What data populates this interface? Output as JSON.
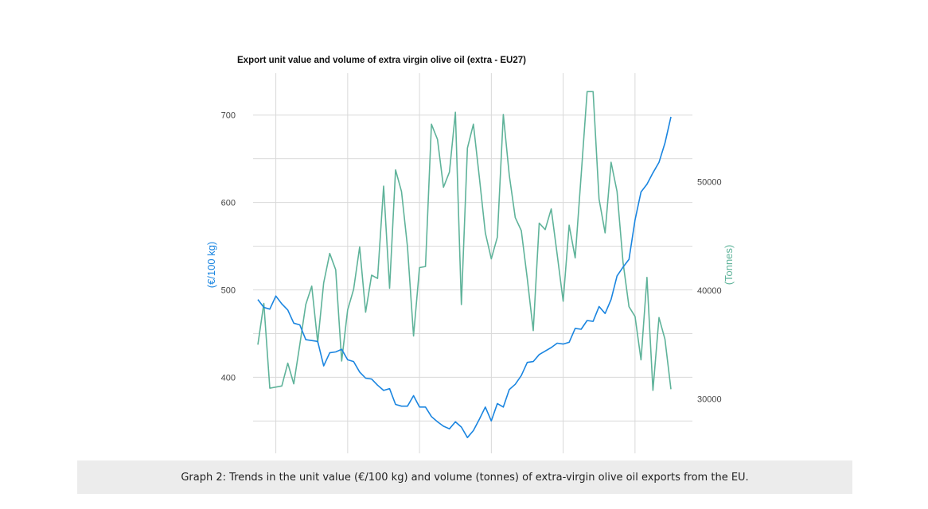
{
  "chart_data": {
    "type": "line",
    "title": "Export unit value and volume of extra virgin olive oil (extra - EU27)",
    "y_left": {
      "label": "(€/100 kg)",
      "ticks": [
        400,
        500,
        600,
        700
      ],
      "range": [
        313,
        748
      ],
      "color": "#1a85e0"
    },
    "y_right": {
      "label": "(Tonnes)",
      "ticks": [
        30000,
        40000,
        50000
      ],
      "range": [
        25000,
        60000
      ],
      "color": "#5fb39a"
    },
    "x": {
      "count": 70,
      "tick_labels": []
    },
    "grid": true,
    "series": [
      {
        "axis": "left",
        "color": "#1a85e0",
        "values": [
          489,
          480,
          478,
          493,
          484,
          477,
          462,
          460,
          443,
          442,
          441,
          413,
          428,
          429,
          432,
          420,
          418,
          406,
          399,
          398,
          391,
          385,
          387,
          369,
          367,
          367,
          379,
          366,
          366,
          355,
          349,
          344,
          341,
          349,
          343,
          331,
          339,
          352,
          366,
          350,
          370,
          366,
          386,
          392,
          402,
          417,
          418,
          426,
          430,
          434,
          439,
          438,
          440,
          456,
          455,
          465,
          464,
          481,
          473,
          489,
          516,
          526,
          535,
          580,
          612,
          621,
          634,
          646,
          668,
          698
        ]
      },
      {
        "axis": "right",
        "color": "#5fb39a",
        "values": [
          35000,
          38800,
          31000,
          31100,
          31200,
          33300,
          31400,
          35000,
          38700,
          40400,
          35200,
          40700,
          43400,
          41900,
          33500,
          38200,
          40100,
          44000,
          38000,
          41400,
          41100,
          49600,
          40200,
          51100,
          49100,
          44000,
          35800,
          42100,
          42200,
          55300,
          53900,
          49500,
          50900,
          56400,
          38700,
          53100,
          55300,
          50400,
          45300,
          42900,
          44900,
          56200,
          50600,
          46700,
          45500,
          41100,
          36300,
          46200,
          45600,
          47500,
          43300,
          39000,
          46000,
          43000,
          50600,
          58300,
          58300,
          48400,
          45300,
          51800,
          49100,
          42600,
          38500,
          37600,
          33600,
          41200,
          30800,
          37500,
          35500,
          30900
        ]
      }
    ]
  },
  "caption": "Graph 2: Trends in the unit value (€/100 kg) and volume (tonnes) of extra-virgin olive oil exports from the EU."
}
